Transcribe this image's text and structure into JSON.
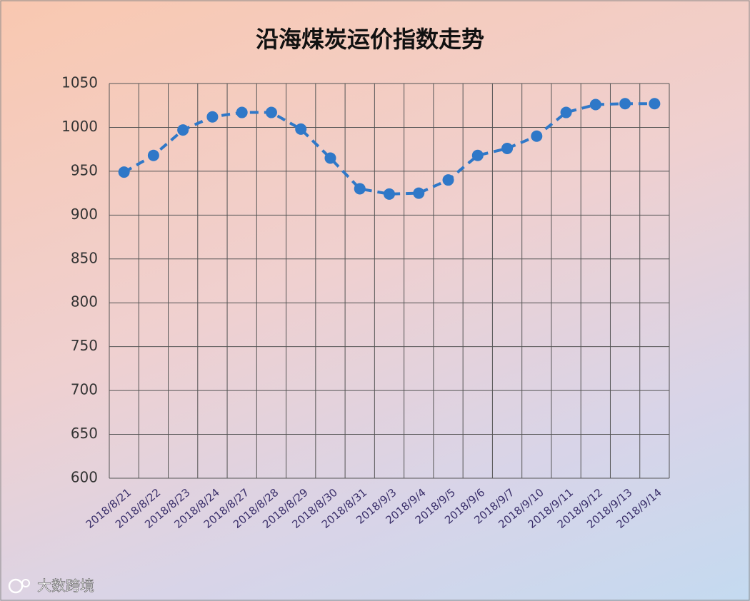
{
  "chart_data": {
    "type": "line",
    "title": "沿海煤炭运价指数走势",
    "categories": [
      "2018/8/21",
      "2018/8/22",
      "2018/8/23",
      "2018/8/24",
      "2018/8/27",
      "2018/8/28",
      "2018/8/29",
      "2018/8/30",
      "2018/8/31",
      "2018/9/3",
      "2018/9/4",
      "2018/9/5",
      "2018/9/6",
      "2018/9/7",
      "2018/9/10",
      "2018/9/11",
      "2018/9/12",
      "2018/9/13",
      "2018/9/14"
    ],
    "values": [
      949,
      968,
      997,
      1012,
      1017,
      1017,
      998,
      965,
      930,
      924,
      925,
      940,
      968,
      976,
      990,
      1017,
      1026,
      1027,
      1027
    ],
    "color": "#2f78c8",
    "dashed": true,
    "ylim": [
      600,
      1050
    ],
    "yticks": [
      600,
      650,
      700,
      750,
      800,
      850,
      900,
      950,
      1000,
      1050
    ],
    "grid": true
  },
  "watermark": "大数跨境"
}
